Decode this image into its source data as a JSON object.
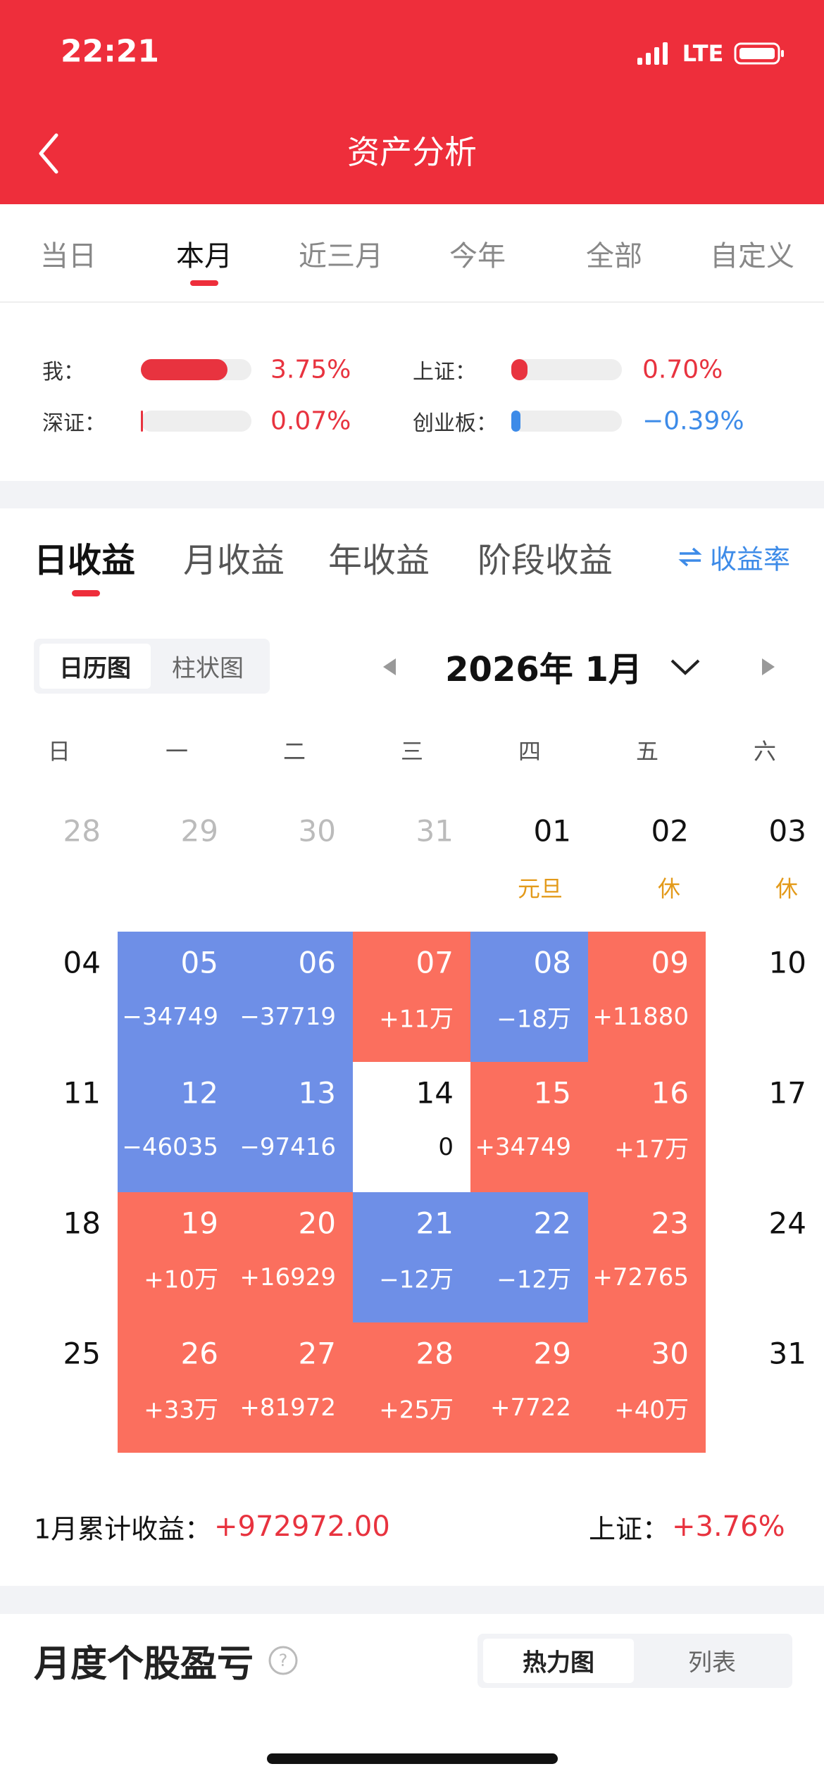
{
  "status_bar": {
    "time": "22:21",
    "network": "LTE"
  },
  "header": {
    "title": "资产分析"
  },
  "period_tabs": {
    "items": [
      "当日",
      "本月",
      "近三月",
      "今年",
      "全部",
      "自定义"
    ],
    "active": 1
  },
  "comparison": {
    "xlim": [
      0,
      4.8
    ],
    "track_color": "#eeeeee",
    "items": [
      {
        "label": "我：",
        "value": 3.75,
        "value_label": "3.75%",
        "color": "#e8333f"
      },
      {
        "label": "上证：",
        "value": 0.7,
        "value_label": "0.70%",
        "color": "#e8333f"
      },
      {
        "label": "深证：",
        "value": 0.07,
        "value_label": "0.07%",
        "color": "#e8333f"
      },
      {
        "label": "创业板：",
        "value": -0.39,
        "value_label": "−0.39%",
        "color": "#3d8be8"
      }
    ]
  },
  "profit_tabs": {
    "items": [
      "日收益",
      "月收益",
      "年收益",
      "阶段收益"
    ],
    "active": 0,
    "rate_link": "收益率"
  },
  "view_toggle": {
    "items": [
      "日历图",
      "柱状图"
    ],
    "active": 0
  },
  "calendar": {
    "month": "2026年 1月",
    "weekdays": [
      "日",
      "一",
      "二",
      "三",
      "四",
      "五",
      "六"
    ],
    "note_color": "#e39a1a",
    "weeks": [
      [
        {
          "day": "28",
          "fg": "#bbbbbb"
        },
        {
          "day": "29",
          "fg": "#bbbbbb"
        },
        {
          "day": "30",
          "fg": "#bbbbbb"
        },
        {
          "day": "31",
          "fg": "#bbbbbb"
        },
        {
          "day": "01",
          "fg": "#111111",
          "note": "元旦"
        },
        {
          "day": "02",
          "fg": "#111111",
          "note": "休"
        },
        {
          "day": "03",
          "fg": "#111111",
          "note": "休"
        }
      ],
      [
        {
          "day": "04",
          "fg": "#111111"
        },
        {
          "day": "05",
          "value": "−34749",
          "bg": "#6e8fe7",
          "fg": "#ffffff"
        },
        {
          "day": "06",
          "value": "−37719",
          "bg": "#6e8fe7",
          "fg": "#ffffff"
        },
        {
          "day": "07",
          "value": "+11万",
          "bg": "#fb6f5e",
          "fg": "#ffffff"
        },
        {
          "day": "08",
          "value": "−18万",
          "bg": "#6e8fe7",
          "fg": "#ffffff"
        },
        {
          "day": "09",
          "value": "+11880",
          "bg": "#fb6f5e",
          "fg": "#ffffff"
        },
        {
          "day": "10",
          "fg": "#111111"
        }
      ],
      [
        {
          "day": "11",
          "fg": "#111111"
        },
        {
          "day": "12",
          "value": "−46035",
          "bg": "#6e8fe7",
          "fg": "#ffffff"
        },
        {
          "day": "13",
          "value": "−97416",
          "bg": "#6e8fe7",
          "fg": "#ffffff"
        },
        {
          "day": "14",
          "value": "0",
          "bg": "#ffffff",
          "fg": "#111111"
        },
        {
          "day": "15",
          "value": "+34749",
          "bg": "#fb6f5e",
          "fg": "#ffffff"
        },
        {
          "day": "16",
          "value": "+17万",
          "bg": "#fb6f5e",
          "fg": "#ffffff"
        },
        {
          "day": "17",
          "fg": "#111111"
        }
      ],
      [
        {
          "day": "18",
          "fg": "#111111"
        },
        {
          "day": "19",
          "value": "+10万",
          "bg": "#fb6f5e",
          "fg": "#ffffff"
        },
        {
          "day": "20",
          "value": "+16929",
          "bg": "#fb6f5e",
          "fg": "#ffffff"
        },
        {
          "day": "21",
          "value": "−12万",
          "bg": "#6e8fe7",
          "fg": "#ffffff"
        },
        {
          "day": "22",
          "value": "−12万",
          "bg": "#6e8fe7",
          "fg": "#ffffff"
        },
        {
          "day": "23",
          "value": "+72765",
          "bg": "#fb6f5e",
          "fg": "#ffffff"
        },
        {
          "day": "24",
          "fg": "#111111"
        }
      ],
      [
        {
          "day": "25",
          "fg": "#111111"
        },
        {
          "day": "26",
          "value": "+33万",
          "bg": "#fb6f5e",
          "fg": "#ffffff"
        },
        {
          "day": "27",
          "value": "+81972",
          "bg": "#fb6f5e",
          "fg": "#ffffff"
        },
        {
          "day": "28",
          "value": "+25万",
          "bg": "#fb6f5e",
          "fg": "#ffffff"
        },
        {
          "day": "29",
          "value": "+7722",
          "bg": "#fb6f5e",
          "fg": "#ffffff"
        },
        {
          "day": "30",
          "value": "+40万",
          "bg": "#fb6f5e",
          "fg": "#ffffff"
        },
        {
          "day": "31",
          "fg": "#111111"
        }
      ]
    ]
  },
  "summary": {
    "label": "1月累计收益：",
    "value": "+972972.00",
    "index_label": "上证：",
    "index_value": "+3.76%"
  },
  "stock_section": {
    "title": "月度个股盈亏",
    "toggle": [
      "热力图",
      "列表"
    ],
    "active": 0
  }
}
